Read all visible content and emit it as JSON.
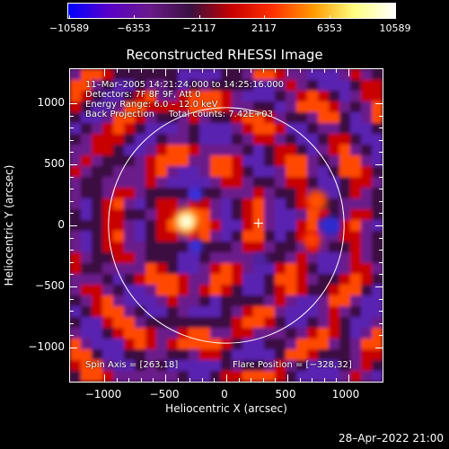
{
  "colorbar": {
    "tick_labels": [
      "−10589",
      "−6353",
      "−2117",
      "2117",
      "6353",
      "10589"
    ],
    "min": -10589,
    "max": 10589
  },
  "plot": {
    "title": "Reconstructed RHESSI Image",
    "info_lines": [
      "11–Mar–2005 14:21:24.000 to 14:25:16.000",
      "Detectors: 7F 8F 9F, Att 0",
      "Energy Range: 6.0 – 12.0 keV",
      "Back Projection     Total counts: 7.42E+03"
    ],
    "spin_axis": "Spin Axis = [263,18]",
    "flare_position": "Flare Position = [−328,32]",
    "x_axis_title": "Heliocentric X (arcsec)",
    "y_axis_title": "Heliocentric Y (arcsec)",
    "x_tick_labels": [
      "−1000",
      "−500",
      "0",
      "500",
      "1000"
    ],
    "y_tick_labels": [
      "1000",
      "500",
      "0",
      "−500",
      "−1000"
    ],
    "x_range": [
      -1280,
      1280
    ],
    "y_range": [
      -1280,
      1280
    ]
  },
  "footer": {
    "timestamp": "28–Apr–2022 21:00"
  },
  "colors": {
    "colormap": [
      "#0000ff",
      "#5a00c8",
      "#6a1a8a",
      "#3a1040",
      "#c80000",
      "#ff3000",
      "#ff9a00",
      "#ffff80",
      "#ffffff"
    ],
    "circle": "#ffffff",
    "background": "#000000"
  }
}
